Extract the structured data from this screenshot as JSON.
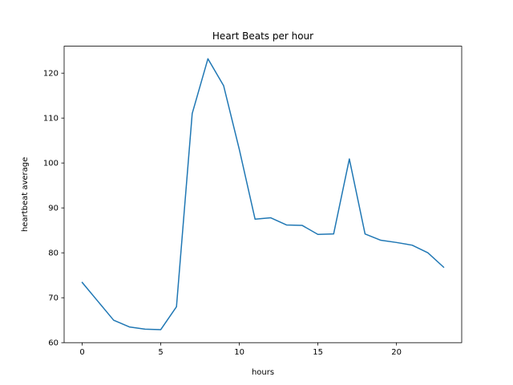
{
  "chart_data": {
    "type": "line",
    "title": "Heart Beats per hour",
    "xlabel": "hours",
    "ylabel": "heartbeat average",
    "xlim": [
      -1.15,
      24.15
    ],
    "ylim": [
      60,
      126
    ],
    "xticks": [
      0,
      5,
      10,
      15,
      20
    ],
    "yticks": [
      60,
      70,
      80,
      90,
      100,
      110,
      120
    ],
    "grid": false,
    "legend": "none",
    "series": [
      {
        "color": "#1f77b4",
        "x": [
          0,
          1,
          2,
          3,
          4,
          5,
          6,
          7,
          8,
          9,
          10,
          11,
          12,
          13,
          14,
          15,
          16,
          17,
          18,
          19,
          20,
          21,
          22,
          23
        ],
        "y": [
          73.4,
          69.2,
          65.0,
          63.5,
          63.0,
          62.9,
          68.0,
          111.0,
          123.2,
          117.2,
          103.0,
          87.5,
          87.8,
          86.2,
          86.1,
          84.1,
          84.2,
          100.9,
          84.2,
          82.8,
          82.3,
          81.7,
          80.0,
          76.8
        ]
      }
    ]
  }
}
